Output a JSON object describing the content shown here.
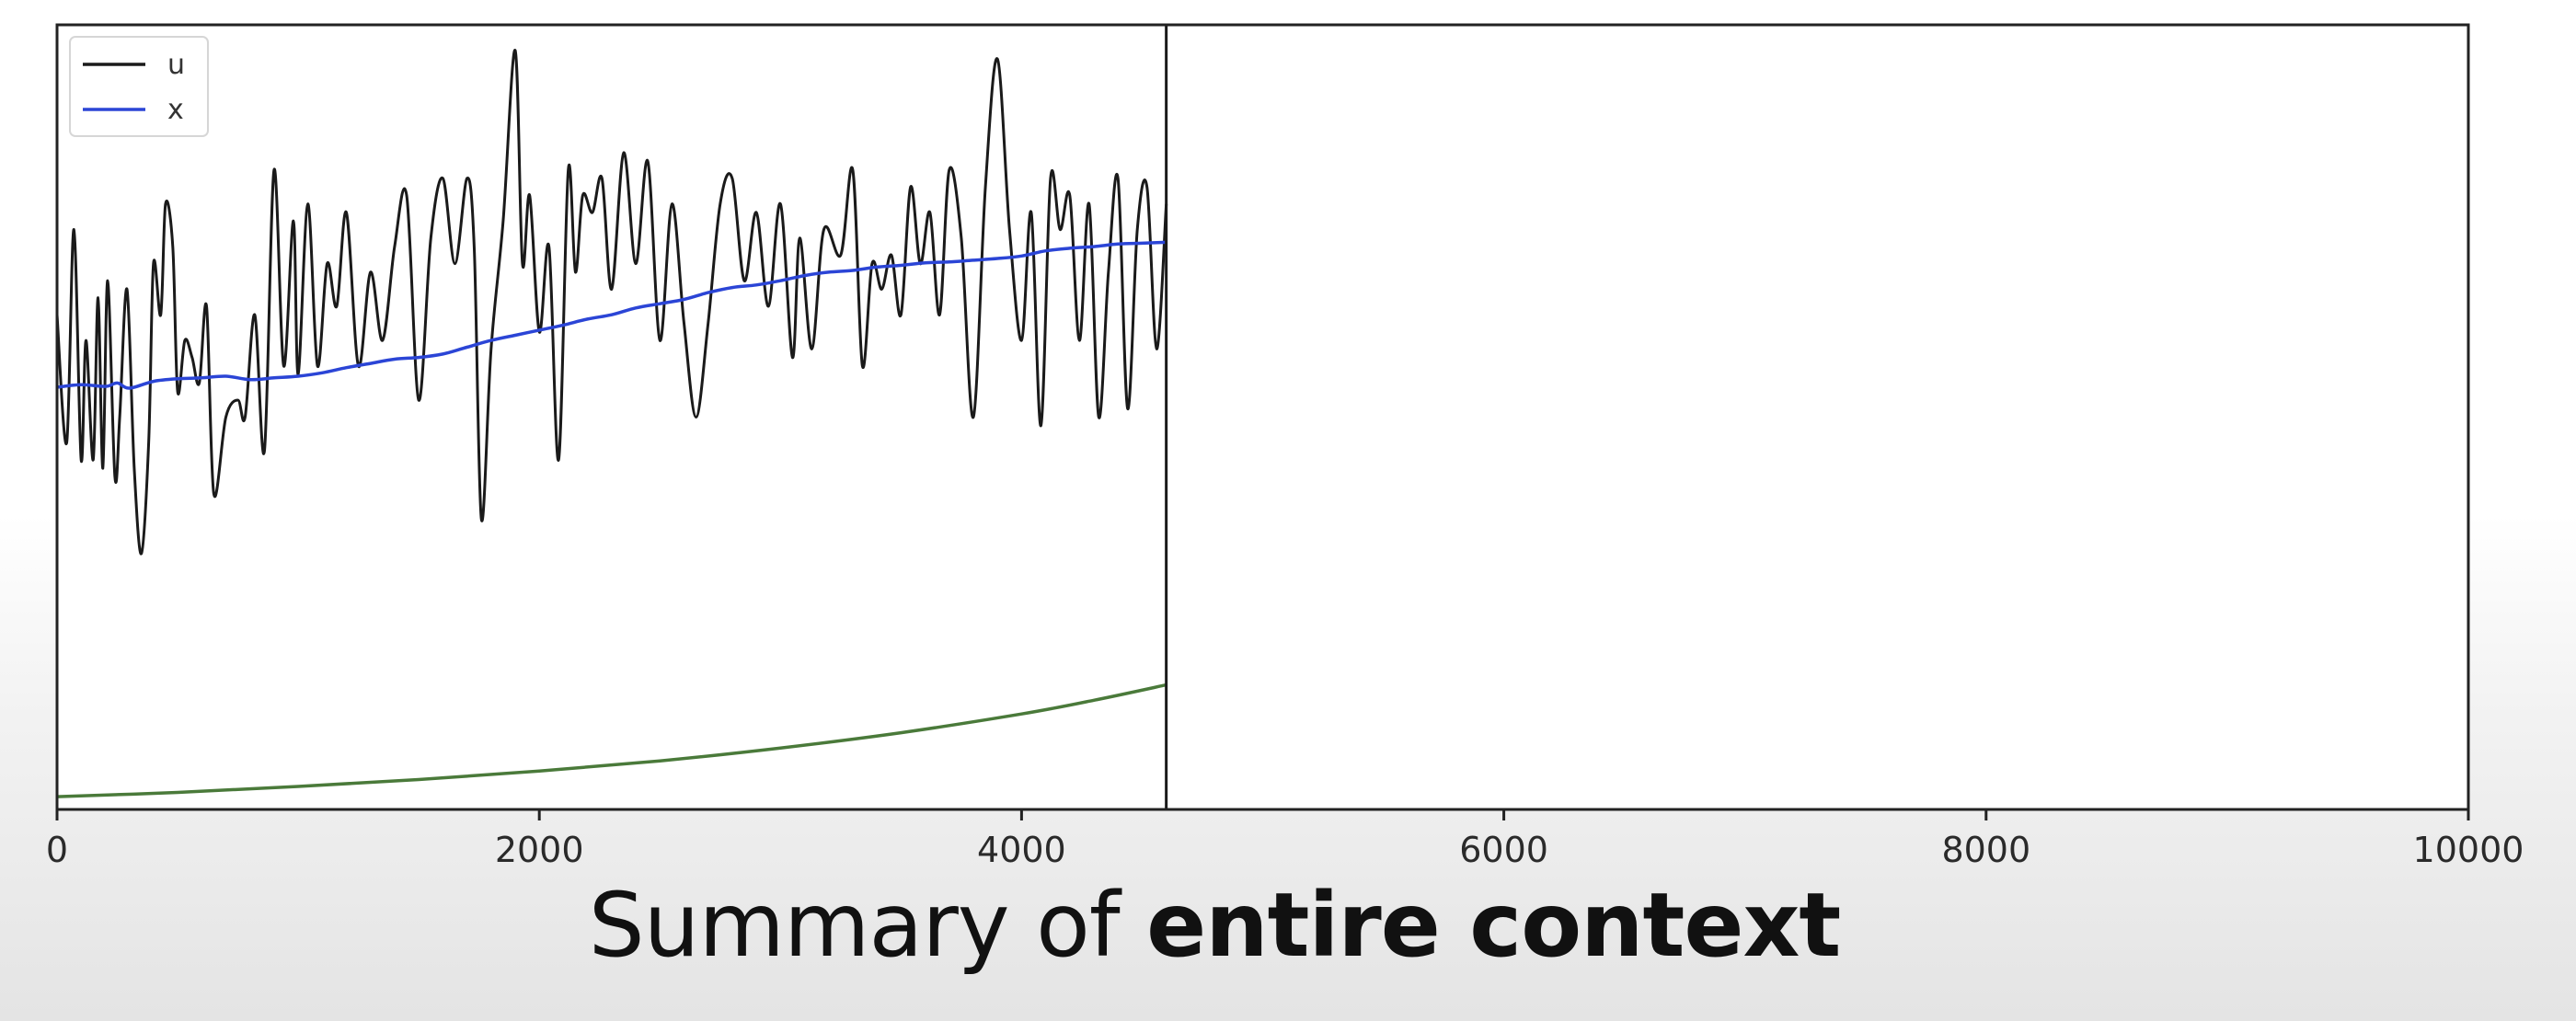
{
  "caption": {
    "prefix": "Summary of",
    "emphasis": "entire context"
  },
  "chart_data": {
    "type": "line",
    "title": "",
    "xlabel": "",
    "ylabel": "",
    "xlim": [
      0,
      10000
    ],
    "ylim": [
      -5.2,
      4.0
    ],
    "grid": false,
    "legend_position": "top-left",
    "x_ticks": [
      0,
      2000,
      4000,
      6000,
      8000,
      10000
    ],
    "x_tick_labels": [
      "0",
      "2000",
      "4000",
      "6000",
      "8000",
      "10000"
    ],
    "cursor_x": 4600,
    "colors": {
      "u": "#1a1a1a",
      "x": "#2b45d6",
      "unnamed": "#4a7a3a",
      "frame": "#222222"
    },
    "series": [
      {
        "name": "u",
        "x": [
          0,
          40,
          70,
          100,
          120,
          150,
          170,
          190,
          210,
          240,
          260,
          290,
          320,
          350,
          380,
          400,
          430,
          450,
          480,
          500,
          530,
          560,
          590,
          620,
          650,
          700,
          750,
          780,
          820,
          860,
          900,
          940,
          980,
          1000,
          1040,
          1080,
          1120,
          1160,
          1200,
          1250,
          1300,
          1350,
          1400,
          1450,
          1500,
          1550,
          1600,
          1650,
          1700,
          1730,
          1760,
          1800,
          1850,
          1900,
          1930,
          1960,
          2000,
          2040,
          2080,
          2120,
          2150,
          2180,
          2220,
          2260,
          2300,
          2350,
          2400,
          2450,
          2500,
          2550,
          2600,
          2650,
          2700,
          2750,
          2800,
          2850,
          2900,
          2950,
          3000,
          3050,
          3080,
          3130,
          3180,
          3250,
          3300,
          3340,
          3380,
          3420,
          3460,
          3500,
          3540,
          3580,
          3620,
          3660,
          3700,
          3750,
          3800,
          3850,
          3900,
          3950,
          4000,
          4040,
          4080,
          4120,
          4160,
          4200,
          4240,
          4280,
          4320,
          4360,
          4400,
          4440,
          4480,
          4520,
          4560,
          4600
        ],
        "y": [
          0.6,
          -0.9,
          1.6,
          -1.1,
          0.3,
          -1.1,
          0.8,
          -1.2,
          1.0,
          -1.3,
          -0.6,
          0.9,
          -1.2,
          -2.2,
          -0.9,
          1.2,
          0.6,
          1.9,
          1.4,
          -0.3,
          0.3,
          0.1,
          -0.2,
          0.7,
          -1.5,
          -0.6,
          -0.4,
          -0.6,
          0.6,
          -1.0,
          2.3,
          0.0,
          1.7,
          -0.1,
          1.9,
          0.0,
          1.2,
          0.7,
          1.8,
          0.0,
          1.1,
          0.3,
          1.4,
          2.0,
          -0.4,
          1.5,
          2.2,
          1.2,
          2.2,
          1.4,
          -1.8,
          0.2,
          1.7,
          3.7,
          1.2,
          2.0,
          0.4,
          1.4,
          -1.1,
          2.3,
          1.1,
          2.0,
          1.8,
          2.2,
          0.9,
          2.5,
          1.2,
          2.4,
          0.3,
          1.9,
          0.5,
          -0.6,
          0.5,
          1.9,
          2.2,
          1.0,
          1.8,
          0.7,
          1.9,
          0.1,
          1.5,
          0.2,
          1.6,
          1.3,
          2.3,
          0.0,
          1.2,
          0.9,
          1.3,
          0.6,
          2.1,
          1.2,
          1.8,
          0.6,
          2.3,
          1.5,
          -0.6,
          2.1,
          3.6,
          1.6,
          0.3,
          1.8,
          -0.7,
          2.2,
          1.6,
          2.0,
          0.3,
          1.9,
          -0.6,
          1.1,
          2.2,
          -0.5,
          1.6,
          2.1,
          0.2,
          1.9
        ]
      },
      {
        "name": "x",
        "x": [
          0,
          100,
          200,
          250,
          300,
          400,
          500,
          600,
          700,
          800,
          900,
          1000,
          1100,
          1200,
          1300,
          1400,
          1500,
          1600,
          1700,
          1800,
          1900,
          2000,
          2100,
          2200,
          2300,
          2400,
          2500,
          2600,
          2700,
          2800,
          2900,
          3000,
          3100,
          3200,
          3300,
          3400,
          3500,
          3600,
          3700,
          3800,
          3900,
          4000,
          4100,
          4200,
          4300,
          4400,
          4500,
          4600
        ],
        "y": [
          -0.25,
          -0.22,
          -0.24,
          -0.2,
          -0.26,
          -0.18,
          -0.15,
          -0.14,
          -0.12,
          -0.16,
          -0.14,
          -0.12,
          -0.08,
          -0.02,
          0.03,
          0.08,
          0.1,
          0.14,
          0.22,
          0.3,
          0.36,
          0.42,
          0.48,
          0.55,
          0.6,
          0.68,
          0.73,
          0.78,
          0.86,
          0.92,
          0.95,
          1.0,
          1.06,
          1.1,
          1.12,
          1.16,
          1.18,
          1.21,
          1.22,
          1.24,
          1.26,
          1.29,
          1.35,
          1.38,
          1.4,
          1.43,
          1.44,
          1.45
        ]
      },
      {
        "name": "",
        "x": [
          0,
          500,
          1000,
          1500,
          2000,
          2500,
          3000,
          3500,
          4000,
          4300,
          4600
        ],
        "y": [
          -5.05,
          -5.0,
          -4.93,
          -4.85,
          -4.75,
          -4.63,
          -4.48,
          -4.3,
          -4.08,
          -3.92,
          -3.74
        ]
      }
    ]
  }
}
